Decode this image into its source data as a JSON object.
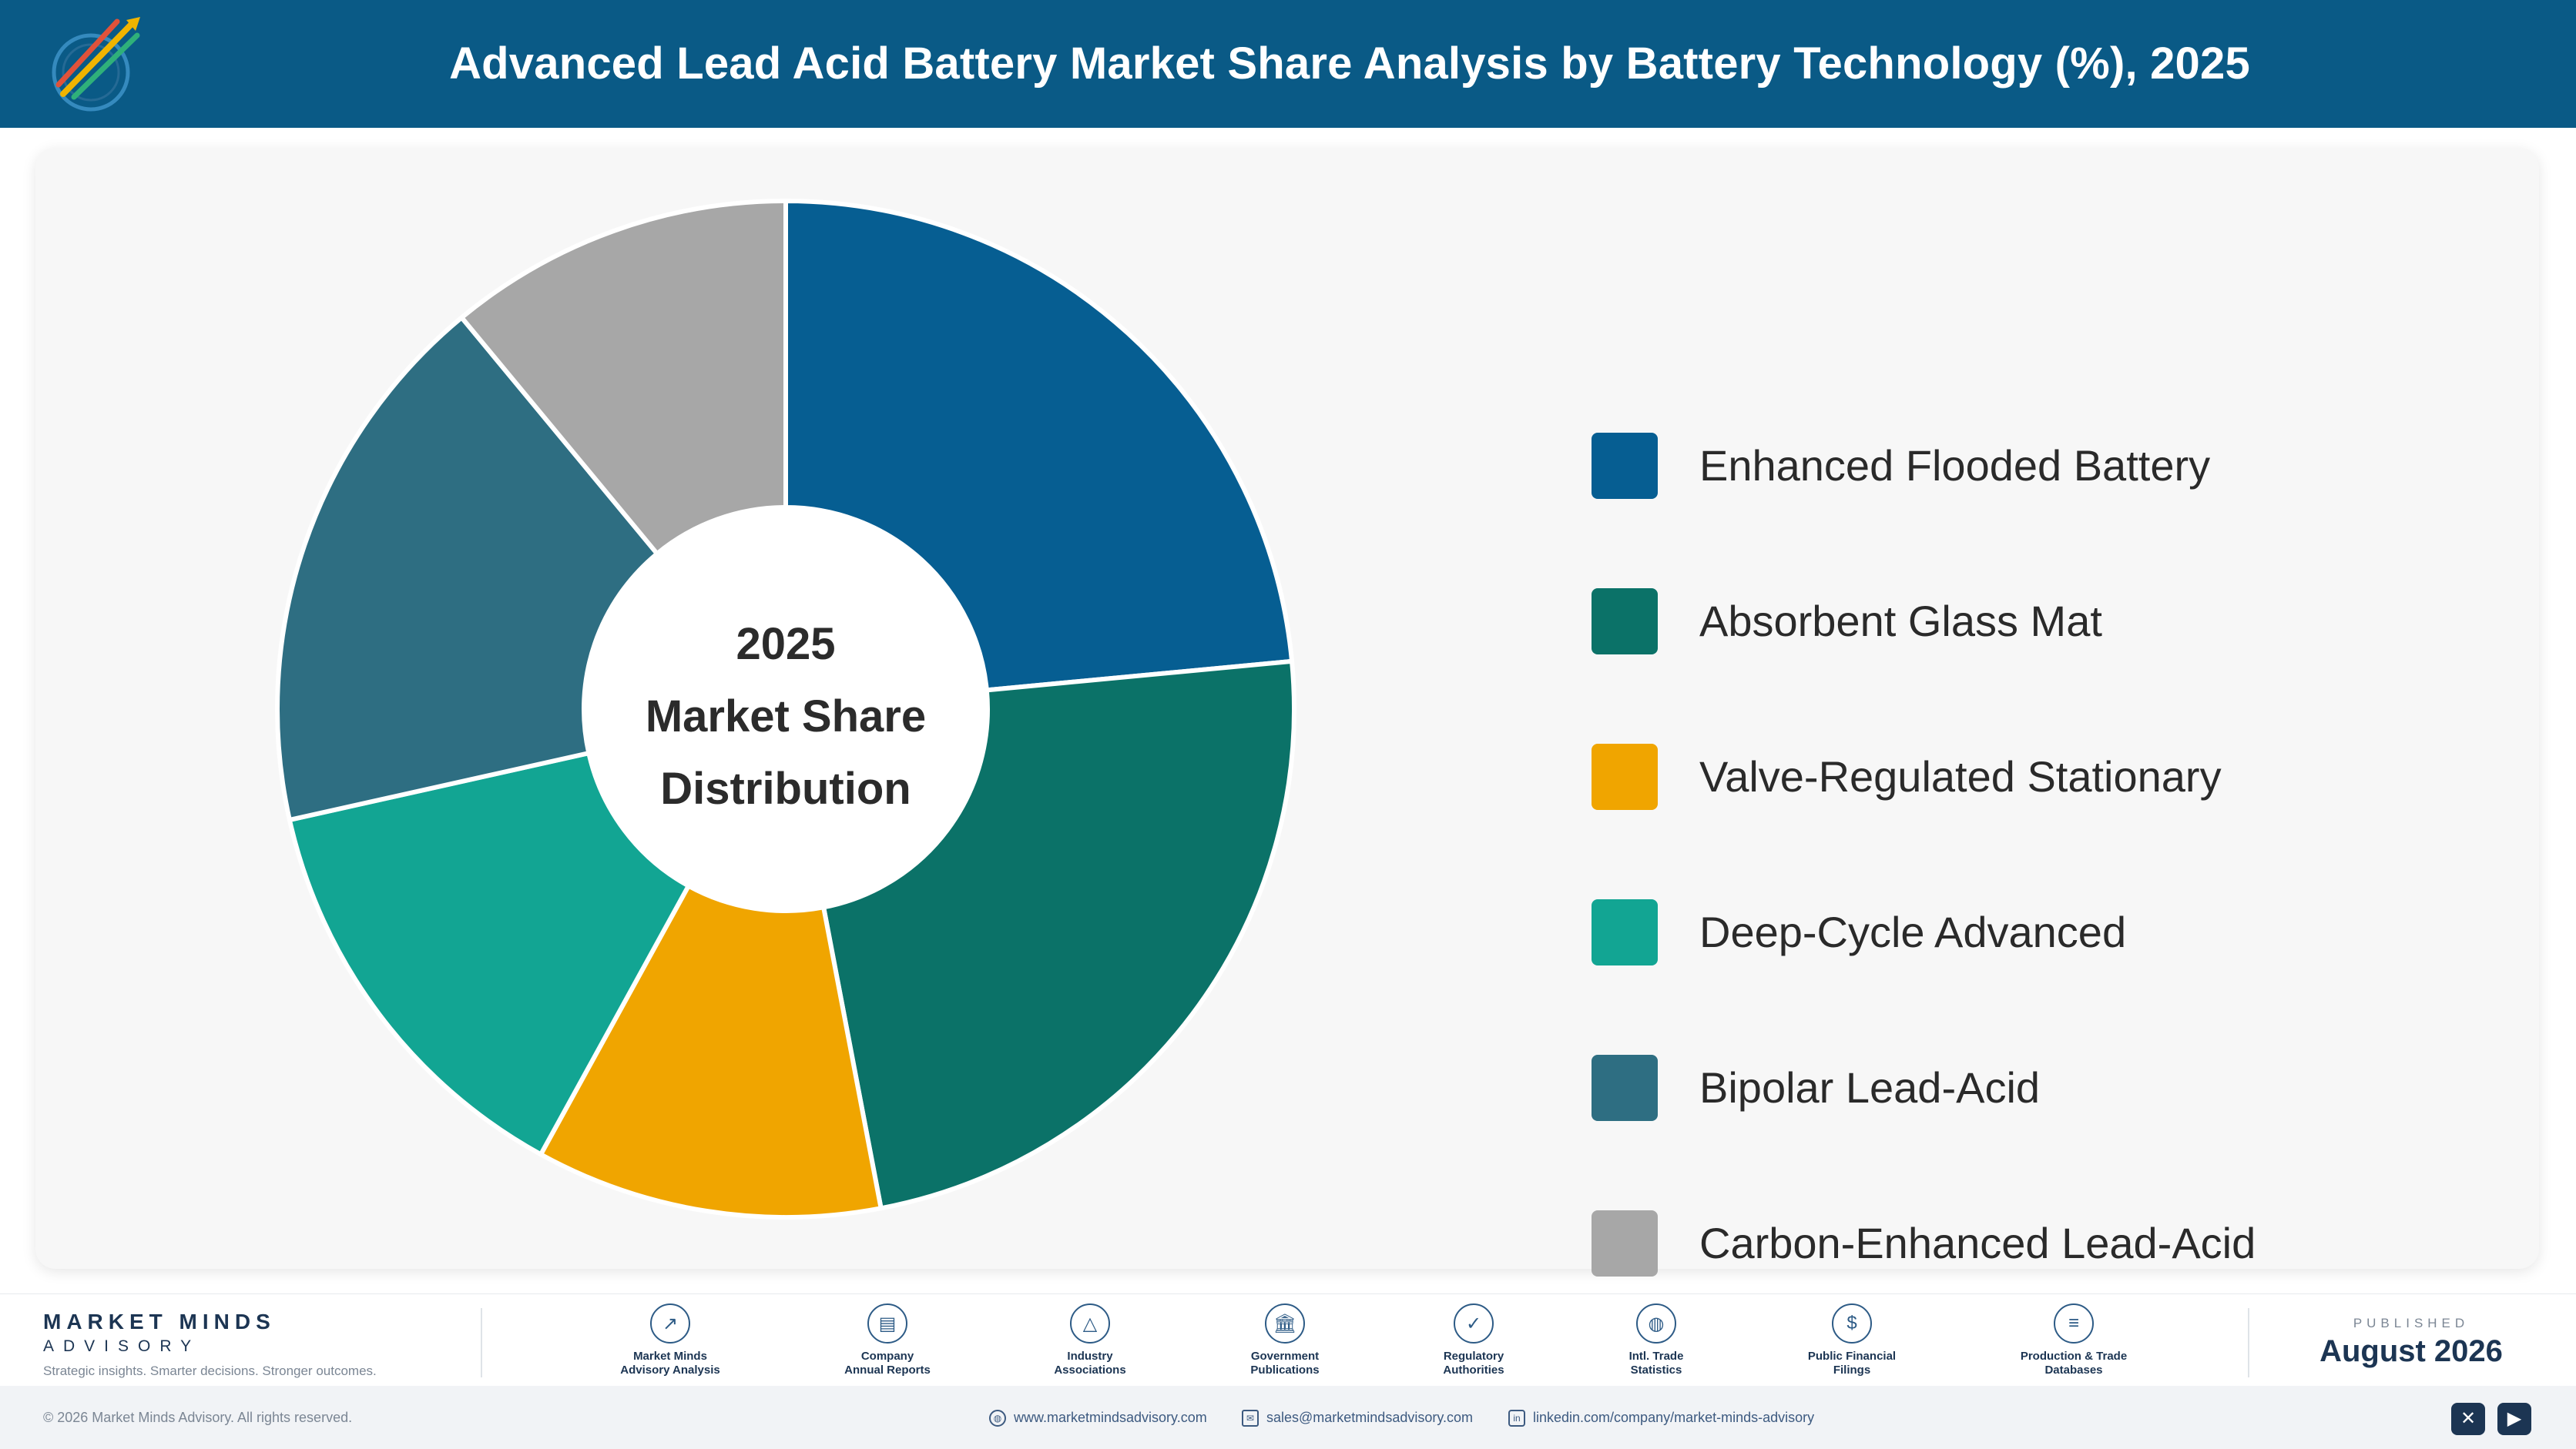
{
  "header": {
    "title": "Advanced Lead Acid Battery Market Share Analysis by Battery Technology (%), 2025",
    "logo_icon": "market-minds-logo-icon"
  },
  "chart_data": {
    "type": "pie",
    "variant": "donut",
    "title": "Advanced Lead Acid Battery Market Share Analysis by Battery Technology (%), 2025",
    "center_label": [
      "2025",
      "Market Share",
      "Distribution"
    ],
    "categories": [
      "Enhanced Flooded Battery",
      "Absorbent Glass Mat",
      "Valve-Regulated Stationary",
      "Deep-Cycle Advanced",
      "Bipolar Lead-Acid",
      "Carbon-Enhanced Lead-Acid"
    ],
    "values": [
      23.5,
      23.5,
      11.0,
      13.5,
      17.5,
      11.0
    ],
    "colors": [
      "#065e92",
      "#0b7268",
      "#f0a500",
      "#12a593",
      "#2e6e82",
      "#a7a7a7"
    ],
    "legend_position": "right",
    "start_angle_deg": 0,
    "direction": "clockwise"
  },
  "footer": {
    "brand_name": "MARKET MINDS",
    "brand_sub": "ADVISORY",
    "brand_tagline": "Strategic insights. Smarter decisions. Stronger outcomes.",
    "sources": [
      {
        "icon": "trend-line-icon",
        "glyph": "↗",
        "label_1": "Market Minds",
        "label_2": "Advisory Analysis"
      },
      {
        "icon": "document-icon",
        "glyph": "▤",
        "label_1": "Company",
        "label_2": "Annual Reports"
      },
      {
        "icon": "network-icon",
        "glyph": "△",
        "label_1": "Industry",
        "label_2": "Associations"
      },
      {
        "icon": "government-building-icon",
        "glyph": "🏛",
        "label_1": "Government",
        "label_2": "Publications"
      },
      {
        "icon": "shield-check-icon",
        "glyph": "✓",
        "label_1": "Regulatory",
        "label_2": "Authorities"
      },
      {
        "icon": "globe-icon",
        "glyph": "◍",
        "label_1": "Intl. Trade",
        "label_2": "Statistics"
      },
      {
        "icon": "dollar-icon",
        "glyph": "$",
        "label_1": "Public Financial",
        "label_2": "Filings"
      },
      {
        "icon": "database-icon",
        "glyph": "≡",
        "label_1": "Production & Trade",
        "label_2": "Databases"
      }
    ],
    "published_label": "PUBLISHED",
    "published_date": "August 2026"
  },
  "bottombar": {
    "copyright": "© 2026 Market Minds Advisory. All rights reserved.",
    "website": "www.marketmindsadvisory.com",
    "email": "sales@marketmindsadvisory.com",
    "linkedin": "linkedin.com/company/market-minds-advisory",
    "social": [
      {
        "icon": "x-twitter-icon",
        "glyph": "✕"
      },
      {
        "icon": "youtube-icon",
        "glyph": "▶"
      }
    ]
  }
}
